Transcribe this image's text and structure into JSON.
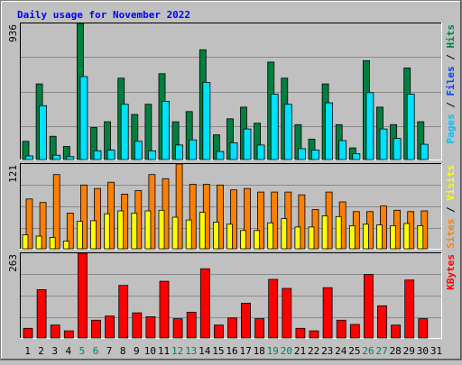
{
  "title": "Daily usage for November 2022",
  "colors": {
    "background": "#c0c0c0",
    "title": "#0000ff",
    "hits": "#008040",
    "files": "#00e0ff",
    "pages": "#00c0ff",
    "visits": "#ff8000",
    "sites": "#ffff00",
    "kbytes": "#ff0000",
    "weekend_label": "#00805c",
    "weekday_label": "#000000"
  },
  "chart_data": [
    {
      "type": "bar",
      "panel": "hits-files-pages",
      "y_max_label": "936",
      "ylim": [
        0,
        936
      ],
      "side_labels": [
        "Pages",
        "Files",
        "Hits"
      ],
      "side_label_separator": " / ",
      "series": [
        {
          "name": "Hits",
          "values": [
            125,
            520,
            160,
            90,
            936,
            220,
            260,
            560,
            310,
            380,
            590,
            260,
            330,
            755,
            170,
            280,
            360,
            250,
            670,
            560,
            240,
            140,
            520,
            240,
            80,
            680,
            360,
            240,
            630,
            260,
            0
          ]
        },
        {
          "name": "Files",
          "values": [
            25,
            370,
            30,
            20,
            570,
            60,
            65,
            380,
            125,
            60,
            400,
            100,
            135,
            530,
            55,
            115,
            210,
            100,
            450,
            380,
            75,
            65,
            390,
            130,
            40,
            460,
            210,
            145,
            450,
            105,
            0
          ]
        },
        {
          "name": "Pages",
          "values": [
            0,
            0,
            0,
            0,
            0,
            0,
            0,
            0,
            0,
            0,
            0,
            0,
            0,
            0,
            0,
            0,
            0,
            0,
            0,
            0,
            0,
            0,
            0,
            0,
            0,
            0,
            0,
            0,
            0,
            0,
            0
          ]
        }
      ]
    },
    {
      "type": "bar",
      "panel": "visits-sites",
      "y_max_label": "121",
      "ylim": [
        0,
        121
      ],
      "side_labels": [
        "Sites",
        "Visits"
      ],
      "side_label_separator": " / ",
      "series": [
        {
          "name": "Visits",
          "values": [
            71,
            66,
            106,
            51,
            91,
            86,
            95,
            78,
            83,
            106,
            100,
            121,
            92,
            92,
            91,
            84,
            86,
            81,
            81,
            81,
            77,
            56,
            81,
            67,
            53,
            53,
            61,
            55,
            53,
            54,
            0
          ]
        },
        {
          "name": "Sites",
          "values": [
            20,
            18,
            16,
            11,
            39,
            40,
            50,
            54,
            51,
            54,
            55,
            45,
            41,
            52,
            38,
            35,
            26,
            26,
            37,
            43,
            31,
            31,
            47,
            46,
            33,
            35,
            34,
            33,
            36,
            33,
            0
          ]
        }
      ]
    },
    {
      "type": "bar",
      "panel": "kbytes",
      "y_max_label": "263",
      "ylim": [
        0,
        263
      ],
      "side_labels": [
        "KBytes"
      ],
      "side_label_separator": "",
      "series": [
        {
          "name": "KBytes",
          "values": [
            30,
            150,
            40,
            22,
            263,
            55,
            68,
            163,
            78,
            66,
            176,
            60,
            80,
            215,
            40,
            62,
            108,
            60,
            182,
            154,
            30,
            22,
            156,
            55,
            42,
            197,
            100,
            40,
            180,
            60,
            0
          ]
        }
      ]
    }
  ],
  "x_labels": [
    "1",
    "2",
    "3",
    "4",
    "5",
    "6",
    "7",
    "8",
    "9",
    "10",
    "11",
    "12",
    "13",
    "14",
    "15",
    "16",
    "17",
    "18",
    "19",
    "20",
    "21",
    "22",
    "23",
    "24",
    "25",
    "26",
    "27",
    "28",
    "29",
    "30",
    "31"
  ],
  "weekend_days": [
    5,
    6,
    12,
    13,
    19,
    20,
    26,
    27
  ]
}
